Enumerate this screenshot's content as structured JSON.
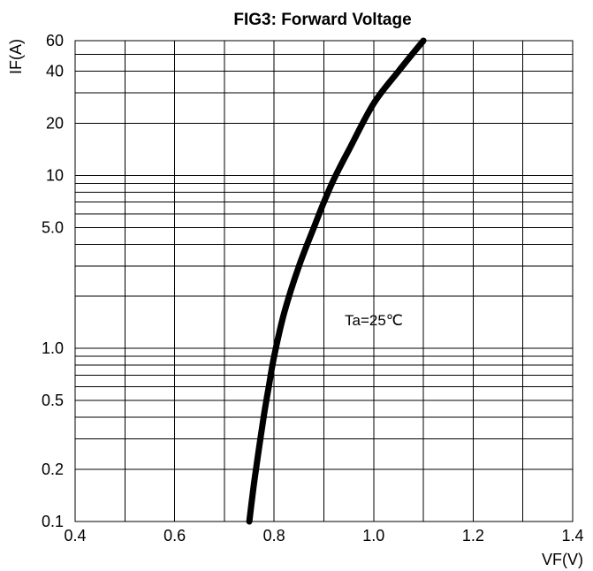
{
  "chart_data": {
    "type": "line",
    "title": "FIG3: Forward Voltage",
    "xlabel": "VF(V)",
    "ylabel": "IF(A)",
    "xlim": [
      0.4,
      1.4
    ],
    "ylim": [
      0.1,
      60
    ],
    "yscale": "log",
    "grid": true,
    "x_ticks": [
      0.4,
      0.6,
      0.8,
      1.0,
      1.2,
      1.4
    ],
    "x_tick_labels": [
      "0.4",
      "0.6",
      "0.8",
      "1.0",
      "1.2",
      "1.4"
    ],
    "y_ticks": [
      0.1,
      0.2,
      0.5,
      1.0,
      5.0,
      10,
      20,
      40,
      60
    ],
    "y_tick_labels": [
      "0.1",
      "0.2",
      "0.5",
      "1.0",
      "5.0",
      "10",
      "20",
      "40",
      "60"
    ],
    "annotation": "Ta=25℃",
    "series": [
      {
        "x": [
          0.75,
          0.76,
          0.77,
          0.78,
          0.79,
          0.8,
          0.82,
          0.85,
          0.88,
          0.9,
          0.92,
          0.95,
          1.0,
          1.05,
          1.1
        ],
        "y": [
          0.1,
          0.17,
          0.27,
          0.42,
          0.62,
          0.9,
          1.6,
          3.0,
          5.0,
          7.0,
          9.5,
          14.0,
          26.0,
          40.0,
          60.0
        ]
      }
    ]
  }
}
